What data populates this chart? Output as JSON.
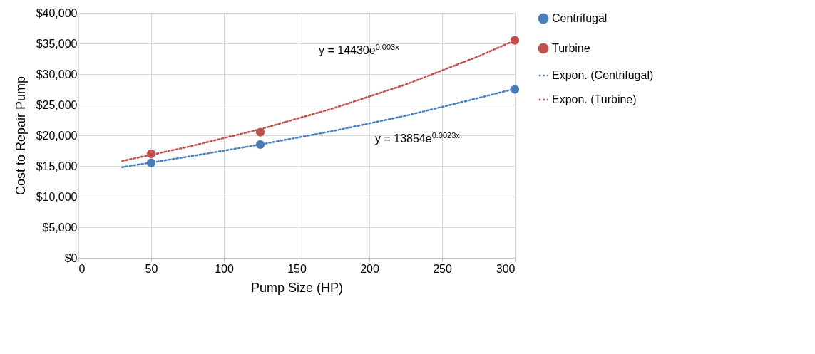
{
  "chart_data": {
    "type": "scatter",
    "xlabel": "Pump Size (HP)",
    "ylabel": "Cost to Repair Pump",
    "xlim": [
      0,
      300
    ],
    "xticks": [
      0,
      50,
      100,
      150,
      200,
      250,
      300
    ],
    "ylim": [
      0,
      40000
    ],
    "yticks": [
      {
        "value": 0,
        "label": "$0"
      },
      {
        "value": 5000,
        "label": "$5,000"
      },
      {
        "value": 10000,
        "label": "$10,000"
      },
      {
        "value": 15000,
        "label": "$15,000"
      },
      {
        "value": 20000,
        "label": "$20,000"
      },
      {
        "value": 25000,
        "label": "$25,000"
      },
      {
        "value": 30000,
        "label": "$30,000"
      },
      {
        "value": 35000,
        "label": "$35,000"
      },
      {
        "value": 40000,
        "label": "$40,000"
      }
    ],
    "grid": true,
    "legend": "right",
    "series": [
      {
        "name": "Centrifugal",
        "color": "#4a7ebb",
        "marker": "circle",
        "x": [
          50,
          125,
          300
        ],
        "values": [
          15500,
          18500,
          27500
        ]
      },
      {
        "name": "Turbine",
        "color": "#c0504d",
        "marker": "circle",
        "x": [
          50,
          125,
          300
        ],
        "values": [
          17000,
          20500,
          35500
        ]
      },
      {
        "name": "Expon. (Centrifugal)",
        "type": "line",
        "line_style": "dotted",
        "color": "#4a7ebb",
        "x": [
          30,
          75,
          125,
          175,
          225,
          275,
          300
        ],
        "values": [
          14800,
          16500,
          18500,
          20700,
          23200,
          26100,
          27600
        ]
      },
      {
        "name": "Expon. (Turbine)",
        "type": "line",
        "line_style": "dotted",
        "color": "#c0504d",
        "x": [
          30,
          75,
          125,
          175,
          225,
          275,
          300
        ],
        "values": [
          15800,
          18100,
          21000,
          24400,
          28300,
          32900,
          35500
        ]
      }
    ],
    "annotations": [
      "y = 14430e$^{0.003x}$",
      "y = 13854e$^{0.0023x}$"
    ]
  }
}
